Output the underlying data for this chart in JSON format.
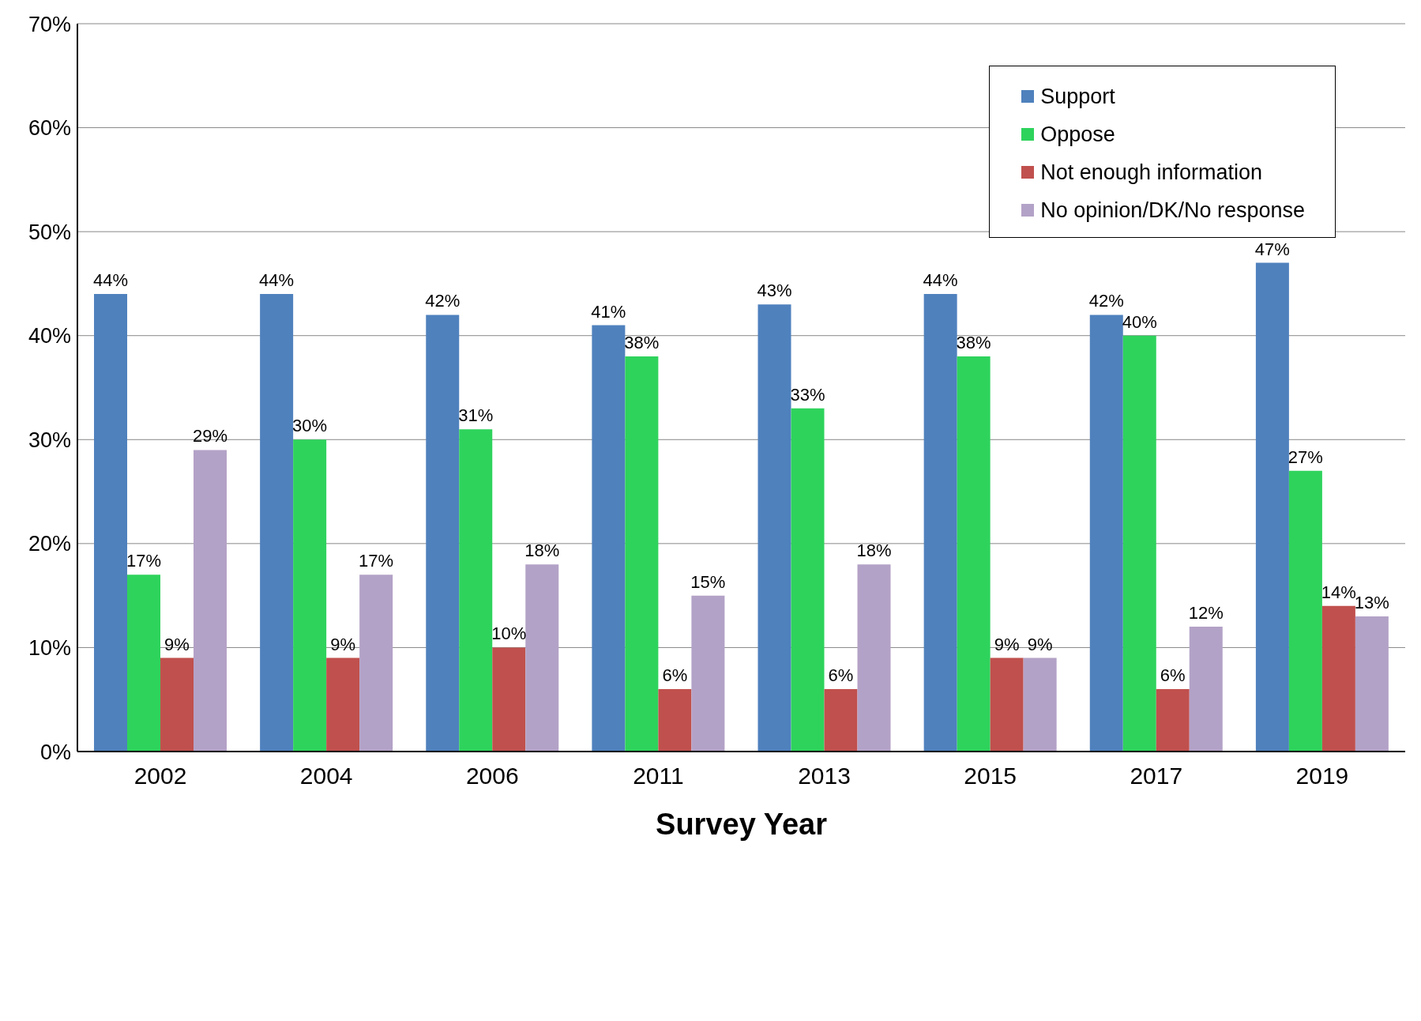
{
  "chart_data": {
    "type": "bar",
    "xlabel": "Survey Year",
    "categories": [
      "2002",
      "2004",
      "2006",
      "2011",
      "2013",
      "2015",
      "2017",
      "2019"
    ],
    "series": [
      {
        "name": "Support",
        "color": "#4f81bd",
        "values": [
          44,
          44,
          42,
          41,
          43,
          44,
          42,
          47
        ],
        "value_labels": [
          "44%",
          "44%",
          "42%",
          "41%",
          "43%",
          "44%",
          "42%",
          "47%"
        ]
      },
      {
        "name": "Oppose",
        "color": "#2ed35c",
        "values": [
          17,
          30,
          31,
          38,
          33,
          38,
          40,
          27
        ],
        "value_labels": [
          "17%",
          "30%",
          "31%",
          "38%",
          "33%",
          "38%",
          "40%",
          "27%"
        ]
      },
      {
        "name": "Not enough information",
        "color": "#c0504d",
        "values": [
          9,
          9,
          10,
          6,
          6,
          9,
          6,
          14
        ],
        "value_labels": [
          "9%",
          "9%",
          "10%",
          "6%",
          "6%",
          "9%",
          "6%",
          "14%"
        ]
      },
      {
        "name": "No opinion/DK/No response",
        "color": "#b3a2c7",
        "values": [
          29,
          17,
          18,
          15,
          18,
          9,
          12,
          13
        ],
        "value_labels": [
          "29%",
          "17%",
          "18%",
          "15%",
          "18%",
          "9%",
          "12%",
          "13%"
        ]
      }
    ],
    "ylim": [
      0,
      70
    ],
    "yticks": [
      {
        "value": 0,
        "label": "0%"
      },
      {
        "value": 10,
        "label": "10%"
      },
      {
        "value": 20,
        "label": "20%"
      },
      {
        "value": 30,
        "label": "30%"
      },
      {
        "value": 40,
        "label": "40%"
      },
      {
        "value": 50,
        "label": "50%"
      },
      {
        "value": 60,
        "label": "60%"
      },
      {
        "value": 70,
        "label": "70%"
      }
    ],
    "grid": "y",
    "legend": "top right"
  }
}
